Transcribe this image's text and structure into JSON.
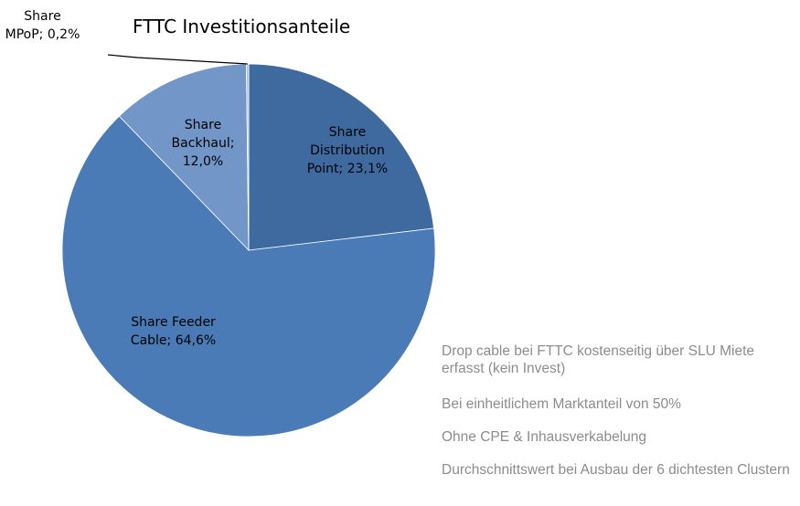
{
  "chart_data": {
    "type": "pie",
    "title": "FTTC Investitionsanteile",
    "categories": [
      "Share Distribution Point",
      "Share Feeder Cable",
      "Share Backhaul",
      "Share MPoP"
    ],
    "values": [
      23.1,
      64.6,
      12.0,
      0.2
    ],
    "value_labels": [
      "23,1%",
      "64,6%",
      "12,0%",
      "0,2%"
    ],
    "label_separator": "; ",
    "colors": [
      "#3f6aa0",
      "#4a7bb7",
      "#7396c8",
      "#a9bfe0"
    ],
    "notes": [
      "Drop cable bei FTTC kostenseitig über SLU Miete erfasst (kein Invest)",
      "Bei einheitlichem Marktanteil von 50%",
      "Ohne CPE & Inhausverkabelung",
      "Durchschnittswert bei Ausbau der 6 dichtesten Clustern"
    ]
  }
}
